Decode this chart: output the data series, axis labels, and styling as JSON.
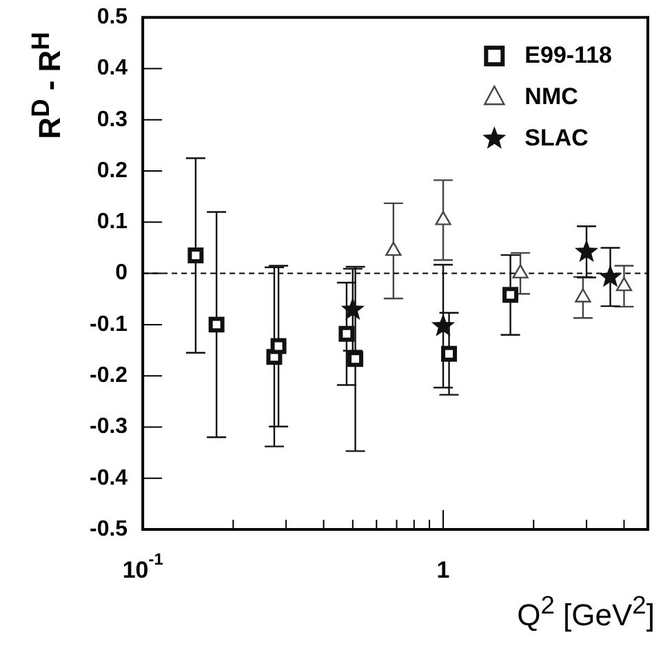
{
  "chart_data": {
    "type": "scatter",
    "xlabel": "Q$^{2}$ [GeV$^{2}$]",
    "ylabel": "R$^{D}$ - R$^{H}$",
    "log": "x",
    "xlim": [
      0.1,
      4.8
    ],
    "ylim": [
      -0.5,
      0.5
    ],
    "xticks": [
      {
        "value": 0.1,
        "label": "10$^{-1}$"
      },
      {
        "value": 0.2,
        "label": null
      },
      {
        "value": 0.3,
        "label": null
      },
      {
        "value": 0.4,
        "label": null
      },
      {
        "value": 0.5,
        "label": null
      },
      {
        "value": 0.6,
        "label": null
      },
      {
        "value": 0.7,
        "label": null
      },
      {
        "value": 0.8,
        "label": null
      },
      {
        "value": 0.9,
        "label": null
      },
      1,
      {
        "value": 2,
        "label": null
      },
      {
        "value": 3,
        "label": null
      },
      {
        "value": 4,
        "label": null
      }
    ],
    "yticks": [
      -0.5,
      -0.4,
      -0.3,
      -0.2,
      -0.1,
      0,
      0.1,
      0.2,
      0.3,
      0.4,
      0.5
    ],
    "legend": "top right",
    "ref_lines": [
      {
        "axis": "y",
        "value": 0,
        "line_style": "dashed",
        "color": "#000000"
      }
    ],
    "series": [
      {
        "name": "E99-118",
        "color": "#111111",
        "marker": "square",
        "x": [
          0.15,
          0.176,
          0.274,
          0.283,
          0.477,
          0.51,
          1.046,
          1.674
        ],
        "values": [
          0.035,
          -0.1,
          -0.163,
          -0.142,
          -0.118,
          -0.167,
          -0.157,
          -0.042
        ],
        "errors": [
          0.19,
          0.22,
          0.175,
          0.157,
          0.1,
          0.18,
          0.08,
          0.078
        ]
      },
      {
        "name": "NMC",
        "color": "#444444",
        "marker": "triangle",
        "x": [
          0.683,
          1.0,
          1.807,
          2.92,
          4.0
        ],
        "values": [
          0.044,
          0.104,
          0.0,
          -0.047,
          -0.025
        ],
        "errors": [
          0.093,
          0.078,
          0.04,
          0.04,
          0.04
        ]
      },
      {
        "name": "SLAC",
        "color": "#111111",
        "marker": "star",
        "x": [
          0.5,
          1.0,
          3.0,
          3.6
        ],
        "values": [
          -0.071,
          -0.103,
          0.042,
          -0.007
        ],
        "errors": [
          0.08,
          0.12,
          0.05,
          0.057
        ]
      }
    ]
  }
}
